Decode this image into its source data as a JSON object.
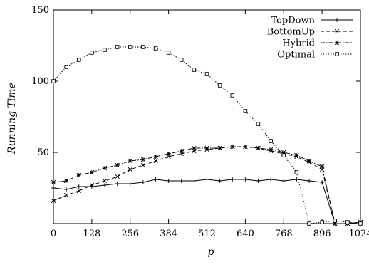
{
  "chart_data": {
    "type": "line",
    "xlabel": "p",
    "ylabel": "Running Time",
    "xlim": [
      0,
      1024
    ],
    "ylim": [
      0,
      150
    ],
    "xticks": [
      0,
      128,
      256,
      384,
      512,
      640,
      768,
      896,
      1024
    ],
    "yticks": [
      50,
      100,
      150
    ],
    "grid": false,
    "legend_position": "top-right",
    "series": [
      {
        "name": "TopDown",
        "marker": "plus",
        "dash": "solid",
        "color": "#000000",
        "x": [
          0,
          43,
          85,
          128,
          171,
          213,
          256,
          299,
          341,
          384,
          427,
          469,
          512,
          555,
          597,
          640,
          683,
          725,
          768,
          811,
          853,
          896,
          939,
          981,
          1024
        ],
        "y": [
          25,
          24,
          26,
          26,
          27,
          28,
          28,
          29,
          31,
          30,
          30,
          30,
          31,
          30,
          31,
          31,
          30,
          31,
          30,
          31,
          30,
          29,
          0,
          0,
          0
        ]
      },
      {
        "name": "BottomUp",
        "marker": "x",
        "dash": "dashed",
        "color": "#000000",
        "x": [
          0,
          43,
          85,
          128,
          171,
          213,
          256,
          299,
          341,
          384,
          427,
          469,
          512,
          555,
          597,
          640,
          683,
          725,
          768,
          811,
          853,
          896,
          939,
          981,
          1024
        ],
        "y": [
          16,
          20,
          23,
          27,
          30,
          33,
          38,
          41,
          44,
          47,
          49,
          51,
          52,
          53,
          54,
          54,
          53,
          51,
          49,
          47,
          43,
          38,
          0,
          0,
          1
        ]
      },
      {
        "name": "Hybrid",
        "marker": "star",
        "dash": "dashdot",
        "color": "#000000",
        "x": [
          0,
          43,
          85,
          128,
          171,
          213,
          256,
          299,
          341,
          384,
          427,
          469,
          512,
          555,
          597,
          640,
          683,
          725,
          768,
          811,
          853,
          896,
          939,
          981,
          1024
        ],
        "y": [
          29,
          30,
          34,
          36,
          39,
          41,
          44,
          45,
          47,
          49,
          51,
          53,
          53,
          53,
          54,
          54,
          53,
          52,
          50,
          48,
          44,
          40,
          0,
          0,
          1
        ]
      },
      {
        "name": "Optimal",
        "marker": "square",
        "dash": "dotted",
        "color": "#000000",
        "x": [
          0,
          43,
          85,
          128,
          171,
          213,
          256,
          299,
          341,
          384,
          427,
          469,
          512,
          555,
          597,
          640,
          683,
          725,
          768,
          811,
          853,
          896,
          939,
          981,
          1024
        ],
        "y": [
          100,
          110,
          115,
          120,
          122,
          124,
          124,
          124,
          123,
          120,
          115,
          108,
          105,
          97,
          90,
          79,
          70,
          58,
          48,
          36,
          0,
          1,
          2,
          1,
          0
        ]
      }
    ]
  }
}
